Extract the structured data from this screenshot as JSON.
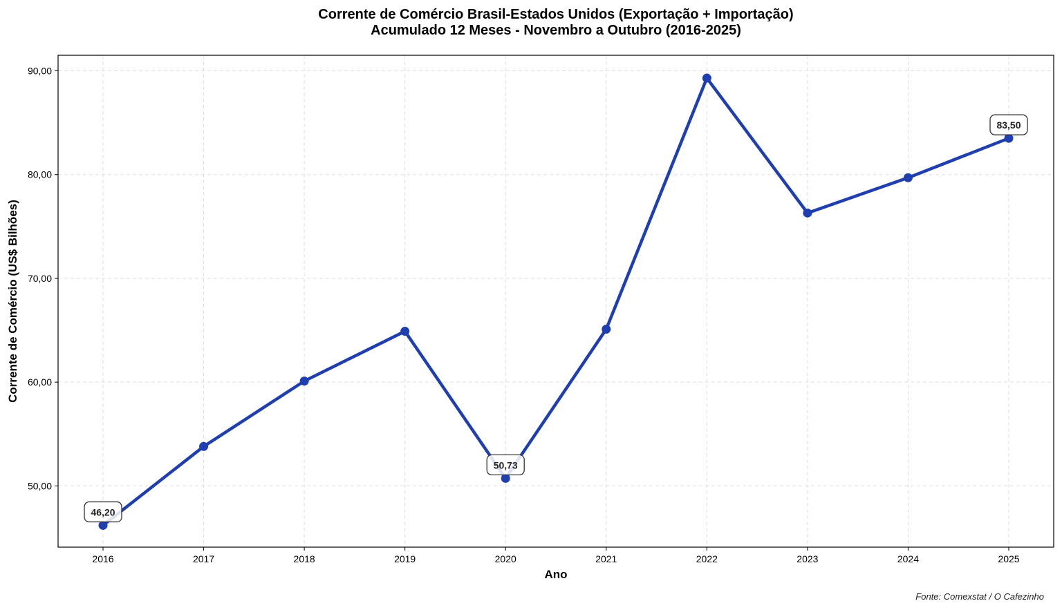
{
  "chart_data": {
    "type": "line",
    "title": "Corrente de Comércio Brasil-Estados Unidos (Exportação + Importação)",
    "subtitle": "Acumulado 12 Meses - Novembro a Outubro (2016-2025)",
    "xlabel": "Ano",
    "ylabel": "Corrente de Comércio (US$ Bilhões)",
    "source": "Fonte: Comexstat / O Cafezinho",
    "x": [
      "2016",
      "2017",
      "2018",
      "2019",
      "2020",
      "2021",
      "2022",
      "2023",
      "2024",
      "2025"
    ],
    "values": [
      46.2,
      53.8,
      60.1,
      64.9,
      50.73,
      65.1,
      89.3,
      76.3,
      79.7,
      83.5
    ],
    "ylim": [
      44.1,
      91.5
    ],
    "yticks": [
      50,
      60,
      70,
      80,
      90
    ],
    "ytick_labels": [
      "50,00",
      "60,00",
      "70,00",
      "80,00",
      "90,00"
    ],
    "annotations": [
      {
        "x": "2016",
        "label": "46,20"
      },
      {
        "x": "2020",
        "label": "50,73"
      },
      {
        "x": "2025",
        "label": "83,50"
      }
    ],
    "grid": true,
    "line_color": "#1f3fb0"
  }
}
